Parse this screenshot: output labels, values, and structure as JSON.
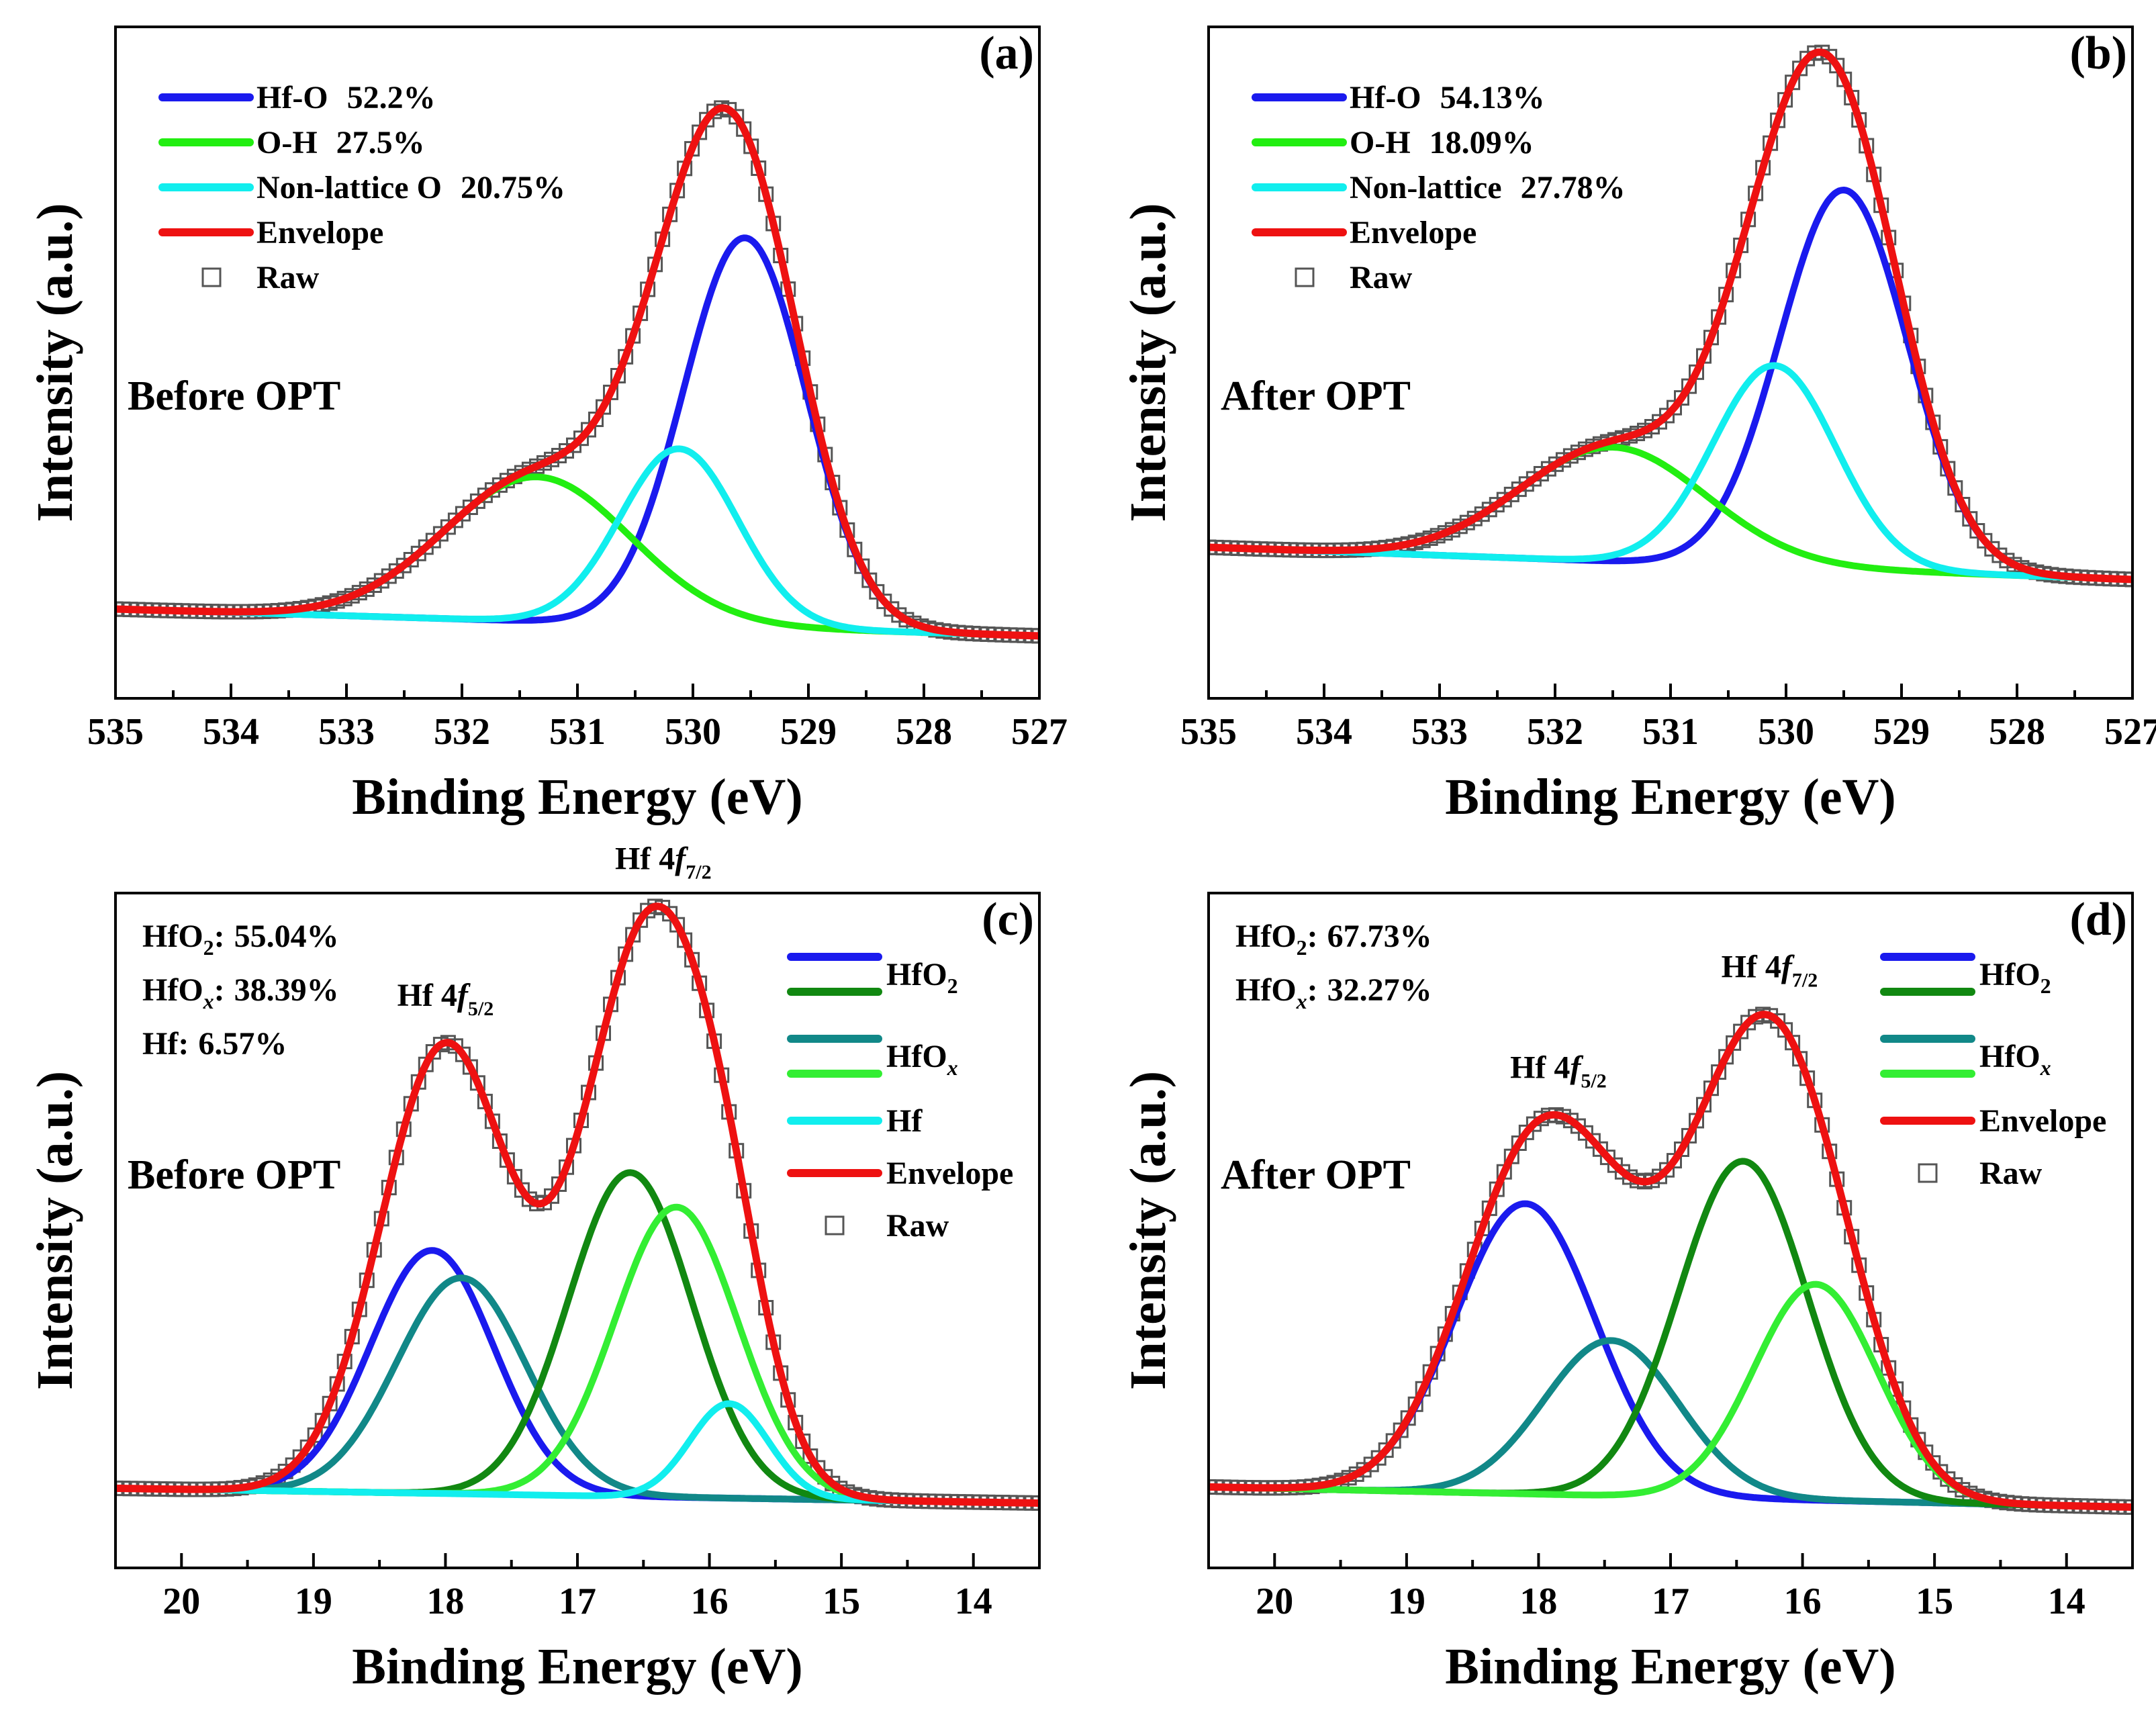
{
  "figure": {
    "colors": {
      "hfo": "#1a1aee",
      "oh": "#22ee11",
      "nonlattice": "#11eeee",
      "envelope": "#ee1111",
      "hfo2": "#118811",
      "hfox_teal": "#118888",
      "hfox_light": "#33ee33",
      "hf": "#11eeee",
      "raw": "#555555",
      "axis": "#000000"
    }
  },
  "chart_data": [
    {
      "type": "line",
      "panel": "(a)",
      "condition": "Before OPT",
      "xlabel": "Binding Energy (eV)",
      "ylabel": "Intensity (a.u.)",
      "xlim": [
        535,
        527
      ],
      "ylim": [
        0,
        1
      ],
      "xticks": [
        535,
        534,
        533,
        532,
        531,
        530,
        529,
        528,
        527
      ],
      "legend_position": "top-left",
      "legend": [
        {
          "name": "Hf-O",
          "value": "52.2%",
          "color_key": "hfo"
        },
        {
          "name": "O-H",
          "value": "27.5%",
          "color_key": "oh"
        },
        {
          "name": "Non-lattice O",
          "value": "20.75%",
          "color_key": "nonlattice"
        },
        {
          "name": "Envelope",
          "value": "",
          "color_key": "envelope"
        },
        {
          "name": "Raw",
          "value": "",
          "color_key": "raw",
          "marker": "square"
        }
      ],
      "baseline": {
        "left": 0.133,
        "right": 0.093
      },
      "peaks": [
        {
          "name": "Hf-O",
          "center": 529.55,
          "height": 0.58,
          "fwhm": 1.25,
          "color_key": "hfo"
        },
        {
          "name": "O-H",
          "center": 531.35,
          "height": 0.215,
          "fwhm": 1.9,
          "color_key": "oh"
        },
        {
          "name": "Non-lattice O",
          "center": 530.12,
          "height": 0.263,
          "fwhm": 1.2,
          "color_key": "nonlattice"
        }
      ],
      "annotations": []
    },
    {
      "type": "line",
      "panel": "(b)",
      "condition": "After OPT",
      "xlabel": "Binding Energy (eV)",
      "ylabel": "Intensity (a.u.)",
      "xlim": [
        535,
        527
      ],
      "ylim": [
        0,
        1
      ],
      "xticks": [
        535,
        534,
        533,
        532,
        531,
        530,
        529,
        528,
        527
      ],
      "legend_position": "top-left",
      "legend": [
        {
          "name": "Hf-O",
          "value": "54.13%",
          "color_key": "hfo"
        },
        {
          "name": "O-H",
          "value": "18.09%",
          "color_key": "oh"
        },
        {
          "name": "Non-lattice",
          "value": "27.78%",
          "color_key": "nonlattice"
        },
        {
          "name": "Envelope",
          "value": "",
          "color_key": "envelope"
        },
        {
          "name": "Raw",
          "value": "",
          "color_key": "raw",
          "marker": "square"
        }
      ],
      "baseline": {
        "left": 0.225,
        "right": 0.177
      },
      "peaks": [
        {
          "name": "Hf-O",
          "center": 529.5,
          "height": 0.565,
          "fwhm": 1.3,
          "color_key": "hfo"
        },
        {
          "name": "O-H",
          "center": 531.5,
          "height": 0.17,
          "fwhm": 1.9,
          "color_key": "oh"
        },
        {
          "name": "Non-lattice",
          "center": 530.1,
          "height": 0.3,
          "fwhm": 1.25,
          "color_key": "nonlattice"
        }
      ],
      "annotations": []
    },
    {
      "type": "line",
      "panel": "(c)",
      "condition": "Before OPT",
      "xlabel": "Binding Energy (eV)",
      "ylabel": "Intensity (a.u.)",
      "xlim": [
        20.5,
        13.5
      ],
      "ylim": [
        0,
        1
      ],
      "xticks": [
        20,
        19,
        18,
        17,
        16,
        15,
        14
      ],
      "legend_position": "top-right",
      "legend": [
        {
          "name": "HfO",
          "sub": "2",
          "color_key": "hfo",
          "color_key2": "hfo2"
        },
        {
          "name": "HfO",
          "sub": "x",
          "color_key": "hfox_teal",
          "color_key2": "hfox_light"
        },
        {
          "name": "Hf",
          "sub": "",
          "color_key": "hf"
        },
        {
          "name": "Envelope",
          "sub": "",
          "color_key": "envelope"
        },
        {
          "name": "Raw",
          "sub": "",
          "color_key": "raw",
          "marker": "square"
        }
      ],
      "ratios": [
        {
          "name": "HfO",
          "sub": "2",
          "value": "55.04%"
        },
        {
          "name": "HfO",
          "sub": "x",
          "value": "38.39%"
        },
        {
          "name": "Hf",
          "sub": "",
          "value": "6.57%"
        }
      ],
      "baseline": {
        "left": 0.118,
        "right": 0.096
      },
      "peaks": [
        {
          "name": "HfO2 4f5/2",
          "center": 18.1,
          "height": 0.36,
          "fwhm": 1.1,
          "color_key": "hfo"
        },
        {
          "name": "HfOx 4f5/2",
          "center": 17.88,
          "height": 0.32,
          "fwhm": 1.15,
          "color_key": "hfox_teal"
        },
        {
          "name": "HfO2 4f7/2",
          "center": 16.6,
          "height": 0.48,
          "fwhm": 1.1,
          "color_key": "hfo2"
        },
        {
          "name": "HfOx 4f7/2",
          "center": 16.25,
          "height": 0.43,
          "fwhm": 1.1,
          "color_key": "hfox_light"
        },
        {
          "name": "Hf",
          "center": 15.85,
          "height": 0.14,
          "fwhm": 0.7,
          "color_key": "hf"
        }
      ],
      "annotations": [
        {
          "label": "Hf 4",
          "italic": "f",
          "sub": "5/2",
          "x": 18.0
        },
        {
          "label": "Hf 4",
          "italic": "f",
          "sub": "7/2",
          "x": 16.35
        }
      ]
    },
    {
      "type": "line",
      "panel": "(d)",
      "condition": "After OPT",
      "xlabel": "Binding Energy (eV)",
      "ylabel": "Intensity (a.u.)",
      "xlim": [
        20.5,
        13.5
      ],
      "ylim": [
        0,
        1
      ],
      "xticks": [
        20,
        19,
        18,
        17,
        16,
        15,
        14
      ],
      "legend_position": "top-right",
      "legend": [
        {
          "name": "HfO",
          "sub": "2",
          "color_key": "hfo",
          "color_key2": "hfo2"
        },
        {
          "name": "HfO",
          "sub": "x",
          "color_key": "hfox_teal",
          "color_key2": "hfox_light"
        },
        {
          "name": "Envelope",
          "sub": "",
          "color_key": "envelope"
        },
        {
          "name": "Raw",
          "sub": "",
          "color_key": "raw",
          "marker": "square"
        }
      ],
      "ratios": [
        {
          "name": "HfO",
          "sub": "2",
          "value": "67.73%"
        },
        {
          "name": "HfO",
          "sub": "x",
          "value": "32.27%"
        }
      ],
      "baseline": {
        "left": 0.12,
        "right": 0.09
      },
      "peaks": [
        {
          "name": "HfO2 4f5/2",
          "center": 18.1,
          "height": 0.43,
          "fwhm": 1.25,
          "color_key": "hfo"
        },
        {
          "name": "HfOx 4f5/2",
          "center": 17.45,
          "height": 0.23,
          "fwhm": 1.2,
          "color_key": "hfox_teal"
        },
        {
          "name": "HfO2 4f7/2",
          "center": 16.45,
          "height": 0.5,
          "fwhm": 1.15,
          "color_key": "hfo2"
        },
        {
          "name": "HfOx 4f7/2",
          "center": 15.9,
          "height": 0.32,
          "fwhm": 1.1,
          "color_key": "hfox_light"
        }
      ],
      "annotations": [
        {
          "label": "Hf 4",
          "italic": "f",
          "sub": "5/2",
          "x": 17.85
        },
        {
          "label": "Hf 4",
          "italic": "f",
          "sub": "7/2",
          "x": 16.25
        }
      ]
    }
  ]
}
